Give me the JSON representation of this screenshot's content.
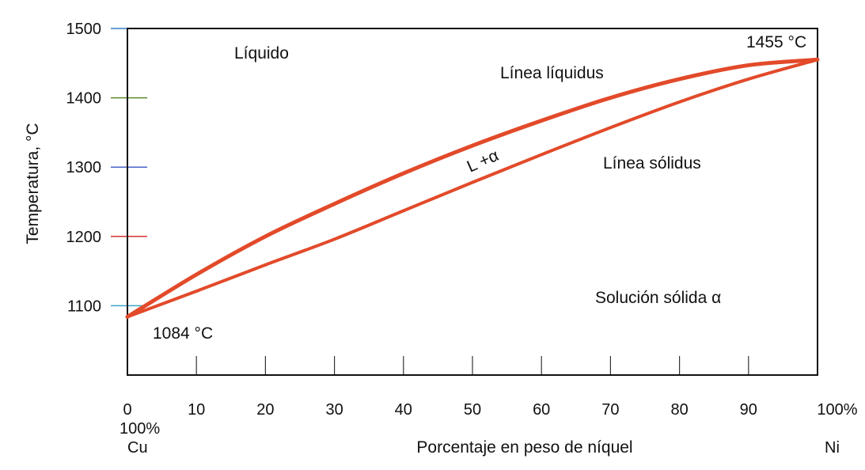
{
  "chart_data": {
    "type": "line",
    "title": "",
    "xlabel": "Porcentaje en peso de níquel",
    "ylabel": "Temperatura, °C",
    "xlim": [
      0,
      100
    ],
    "ylim": [
      1000,
      1500
    ],
    "x_ticks": [
      0,
      10,
      20,
      30,
      40,
      50,
      60,
      70,
      80,
      90,
      100
    ],
    "x_tick_labels": [
      "0",
      "10",
      "20",
      "30",
      "40",
      "50",
      "60",
      "70",
      "80",
      "90",
      "100%"
    ],
    "y_ticks": [
      1100,
      1200,
      1300,
      1400,
      1500
    ],
    "y_tick_labels": [
      "1100",
      "1200",
      "1300",
      "1400",
      "1500"
    ],
    "y_tick_colors": [
      "#3aa6c9",
      "#d83030",
      "#4a64c8",
      "#5a8a2a",
      "#3a7fc8"
    ],
    "x_end_labels": {
      "left_pct": "100%",
      "left_element": "Cu",
      "right_element": "Ni"
    },
    "grid": false,
    "line_color": "#e24a2a",
    "series": [
      {
        "name": "Línea líquidus",
        "x": [
          0,
          10,
          20,
          30,
          40,
          50,
          60,
          70,
          80,
          90,
          100
        ],
        "y": [
          1084,
          1145,
          1200,
          1247,
          1291,
          1331,
          1367,
          1400,
          1427,
          1447,
          1455
        ]
      },
      {
        "name": "Línea sólidus",
        "x": [
          0,
          10,
          20,
          30,
          40,
          50,
          60,
          70,
          80,
          90,
          100
        ],
        "y": [
          1084,
          1121,
          1159,
          1196,
          1237,
          1278,
          1318,
          1357,
          1394,
          1427,
          1455
        ]
      }
    ],
    "annotations": {
      "liquid": "Líquido",
      "liquidus": "Línea líquidus",
      "solidus": "Línea sólidus",
      "two_phase": "L +α",
      "solid": "Solución sólida α",
      "cu_melting": "1084 °C",
      "ni_melting": "1455 °C"
    }
  }
}
